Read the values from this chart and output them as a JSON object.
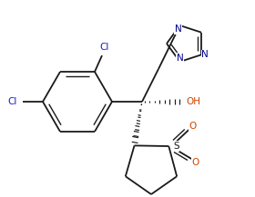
{
  "bg": "#ffffff",
  "lc": "#1a1a1a",
  "cl_color": "#1a1acd",
  "o_color": "#cc4400",
  "n_color": "#00008b",
  "bw": 1.3,
  "bwt": 1.0,
  "fs": 8.0,
  "figw": 2.8,
  "figh": 2.17,
  "dpi": 100,
  "xlim": [
    0,
    280
  ],
  "ylim": [
    217,
    0
  ]
}
